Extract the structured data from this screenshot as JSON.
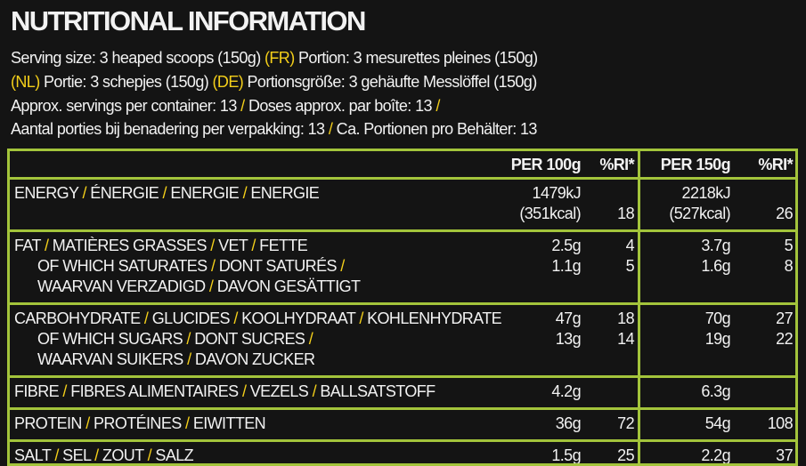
{
  "header": {
    "title": "NUTRITIONAL INFORMATION",
    "lines": [
      "Serving size: 3 heaped scoops (150g) (FR) Portion: 3 mesurettes pleines (150g)",
      "(NL) Portie: 3 schepjes (150g) (DE) Portionsgröße: 3 gehäufte Messlöffel (150g)",
      "Approx. servings per container: 13 / Doses approx. par boîte: 13 /",
      "Aantal porties bij benadering per verpakking: 13 / Ca. Portionen pro Behälter: 13"
    ]
  },
  "table": {
    "columns": [
      "PER 100g",
      "%RI*",
      "PER 150g",
      "%RI*"
    ],
    "rows": [
      {
        "lines": [
          {
            "label": "ENERGY / ÉNERGIE / ENERGIE / ENERGIE",
            "per100": "1479kJ",
            "per150": "2218kJ"
          },
          {
            "per100": "(351kcal)",
            "ri100": 18,
            "per150": "(527kcal)",
            "ri150": 26
          }
        ]
      },
      {
        "lines": [
          {
            "label": "FAT / MATIÈRES GRASSES / VET / FETTE",
            "per100": "2.5g",
            "ri100": 4,
            "per150": "3.7g",
            "ri150": 5
          },
          {
            "label": "OF WHICH SATURATES / DONT SATURÉS /",
            "per100": "1.1g",
            "ri100": 5,
            "per150": "1.6g",
            "ri150": 8
          },
          {
            "label": "WAARVAN VERZADIGD / DAVON GESÄTTIGT"
          }
        ]
      },
      {
        "lines": [
          {
            "label": "CARBOHYDRATE / GLUCIDES / KOOLHYDRAAT / KOHLENHYDRATE",
            "per100": "47g",
            "ri100": 18,
            "per150": "70g",
            "ri150": 27
          },
          {
            "label": "OF WHICH SUGARS / DONT SUCRES /",
            "per100": "13g",
            "ri100": 14,
            "per150": "19g",
            "ri150": 22
          },
          {
            "label": "WAARVAN SUIKERS / DAVON ZUCKER"
          }
        ]
      },
      {
        "lines": [
          {
            "label": "FIBRE / FIBRES ALIMENTAIRES / VEZELS / BALLSATSTOFF",
            "per100": "4.2g",
            "per150": "6.3g"
          }
        ]
      },
      {
        "lines": [
          {
            "label": "PROTEIN / PROTÉINES / EIWITTEN",
            "per100": "36g",
            "ri100": 72,
            "per150": "54g",
            "ri150": 108
          }
        ]
      },
      {
        "lines": [
          {
            "label": "SALT / SEL / ZOUT / SALZ",
            "per100": "1.5g",
            "ri100": 25,
            "per150": "2.2g",
            "ri150": 37
          }
        ]
      }
    ]
  }
}
